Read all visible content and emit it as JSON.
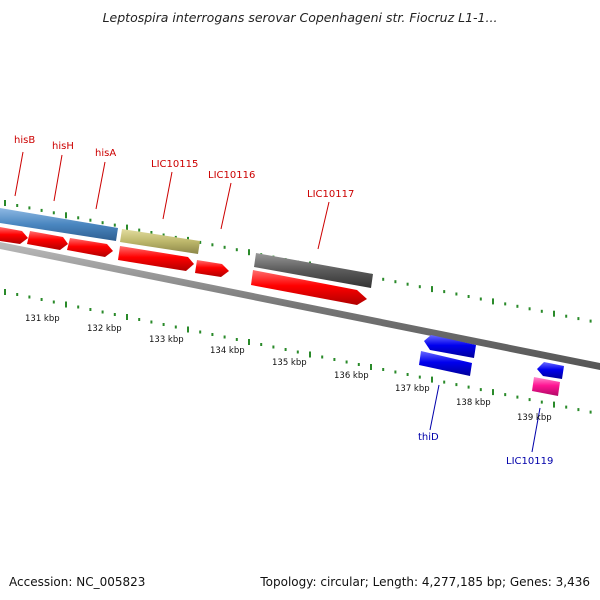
{
  "title": "Leptospira interrogans serovar Copenhageni str. Fiocruz L1-1...",
  "footer": {
    "accession": "Accession: NC_005823",
    "summary": "Topology: circular; Length: 4,277,185 bp; Genes: 3,436"
  },
  "colors": {
    "forward_cds": "#ff0000",
    "reverse_cds": "#0000ee",
    "forward_label": "#cc0000",
    "reverse_label": "#0000aa",
    "backbone": "#888888",
    "tick": "#2a8a2a",
    "his_operon_gene": "#4a86c0",
    "lic10115_gene": "#bdb76b",
    "lic10117_gene": "#5a5a5a",
    "lic10119_cds": "#ff1493"
  },
  "ruler_labels": [
    "131 kbp",
    "132 kbp",
    "133 kbp",
    "134 kbp",
    "135 kbp",
    "136 kbp",
    "137 kbp",
    "138 kbp",
    "139 kbp"
  ],
  "gene_labels_forward": [
    "hisB",
    "hisH",
    "hisA",
    "LIC10115",
    "LIC10116",
    "LIC10117"
  ],
  "gene_labels_reverse": [
    "thiD",
    "LIC10119"
  ]
}
